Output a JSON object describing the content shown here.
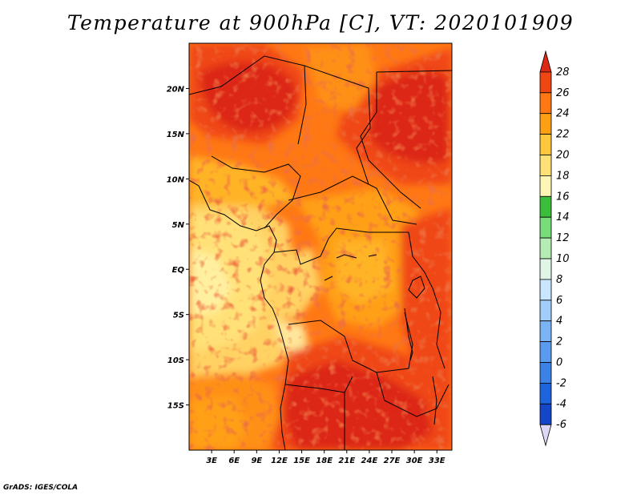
{
  "title": "Temperature at 900hPa [C], VT: 2020101909",
  "credit": "GrADS: IGES/COLA",
  "map": {
    "lon_range": [
      0,
      35
    ],
    "lat_range": [
      -20,
      25
    ],
    "lat_ticks": [
      {
        "value": 20,
        "label": "20N"
      },
      {
        "value": 15,
        "label": "15N"
      },
      {
        "value": 10,
        "label": "10N"
      },
      {
        "value": 5,
        "label": "5N"
      },
      {
        "value": 0,
        "label": "EQ"
      },
      {
        "value": -5,
        "label": "5S"
      },
      {
        "value": -10,
        "label": "10S"
      },
      {
        "value": -15,
        "label": "15S"
      }
    ],
    "lon_ticks": [
      {
        "value": 3,
        "label": "3E"
      },
      {
        "value": 6,
        "label": "6E"
      },
      {
        "value": 9,
        "label": "9E"
      },
      {
        "value": 12,
        "label": "12E"
      },
      {
        "value": 15,
        "label": "15E"
      },
      {
        "value": 18,
        "label": "18E"
      },
      {
        "value": 21,
        "label": "21E"
      },
      {
        "value": 24,
        "label": "24E"
      },
      {
        "value": 27,
        "label": "27E"
      },
      {
        "value": 30,
        "label": "30E"
      },
      {
        "value": 33,
        "label": "33E"
      }
    ]
  },
  "colorbar": {
    "levels": [
      "-6",
      "-4",
      "-2",
      "0",
      "2",
      "4",
      "6",
      "8",
      "10",
      "12",
      "14",
      "16",
      "18",
      "20",
      "22",
      "24",
      "26",
      "28"
    ],
    "colors": [
      "#0c1a8c",
      "#1446c8",
      "#1e64dc",
      "#3c82e6",
      "#5a9bf0",
      "#7ab4f5",
      "#a0cdfa",
      "#c8e6ff",
      "#e0f5e6",
      "#b4ecb4",
      "#78dc78",
      "#3cbe3c",
      "#fff5b4",
      "#ffe178",
      "#ffc83c",
      "#ffa014",
      "#ff7814",
      "#f04614",
      "#dc2814"
    ],
    "min_color": "#dcd8f5"
  }
}
